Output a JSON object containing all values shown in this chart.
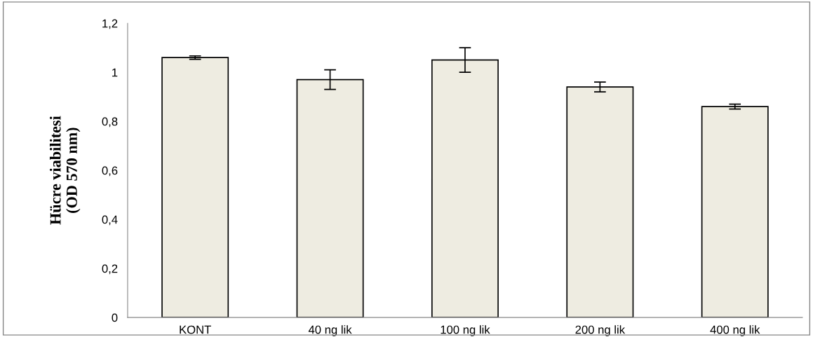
{
  "chart_data": {
    "type": "bar",
    "ylabel": "Hücre viabilitesi\n(OD 570 nm)",
    "categories": [
      "KONT",
      "40 ng lik",
      "100 ng lik",
      "200 ng lik",
      "400 ng lik"
    ],
    "values": [
      1.06,
      0.97,
      1.05,
      0.94,
      0.86
    ],
    "errors": [
      0.007,
      0.04,
      0.05,
      0.02,
      0.01
    ],
    "colors": [
      "#eeece1",
      "#eeece1",
      "#eeece1",
      "#eeece1",
      "#eeece1"
    ],
    "ylim": [
      0,
      1.2
    ],
    "yticks": [
      {
        "value": 0,
        "label": "0"
      },
      {
        "value": 0.2,
        "label": "0,2"
      },
      {
        "value": 0.4,
        "label": "0,4"
      },
      {
        "value": 0.6,
        "label": "0,6"
      },
      {
        "value": 0.8,
        "label": "0,8"
      },
      {
        "value": 1,
        "label": "1"
      },
      {
        "value": 1.2,
        "label": "1,2"
      }
    ],
    "grid": false,
    "legend": false
  }
}
